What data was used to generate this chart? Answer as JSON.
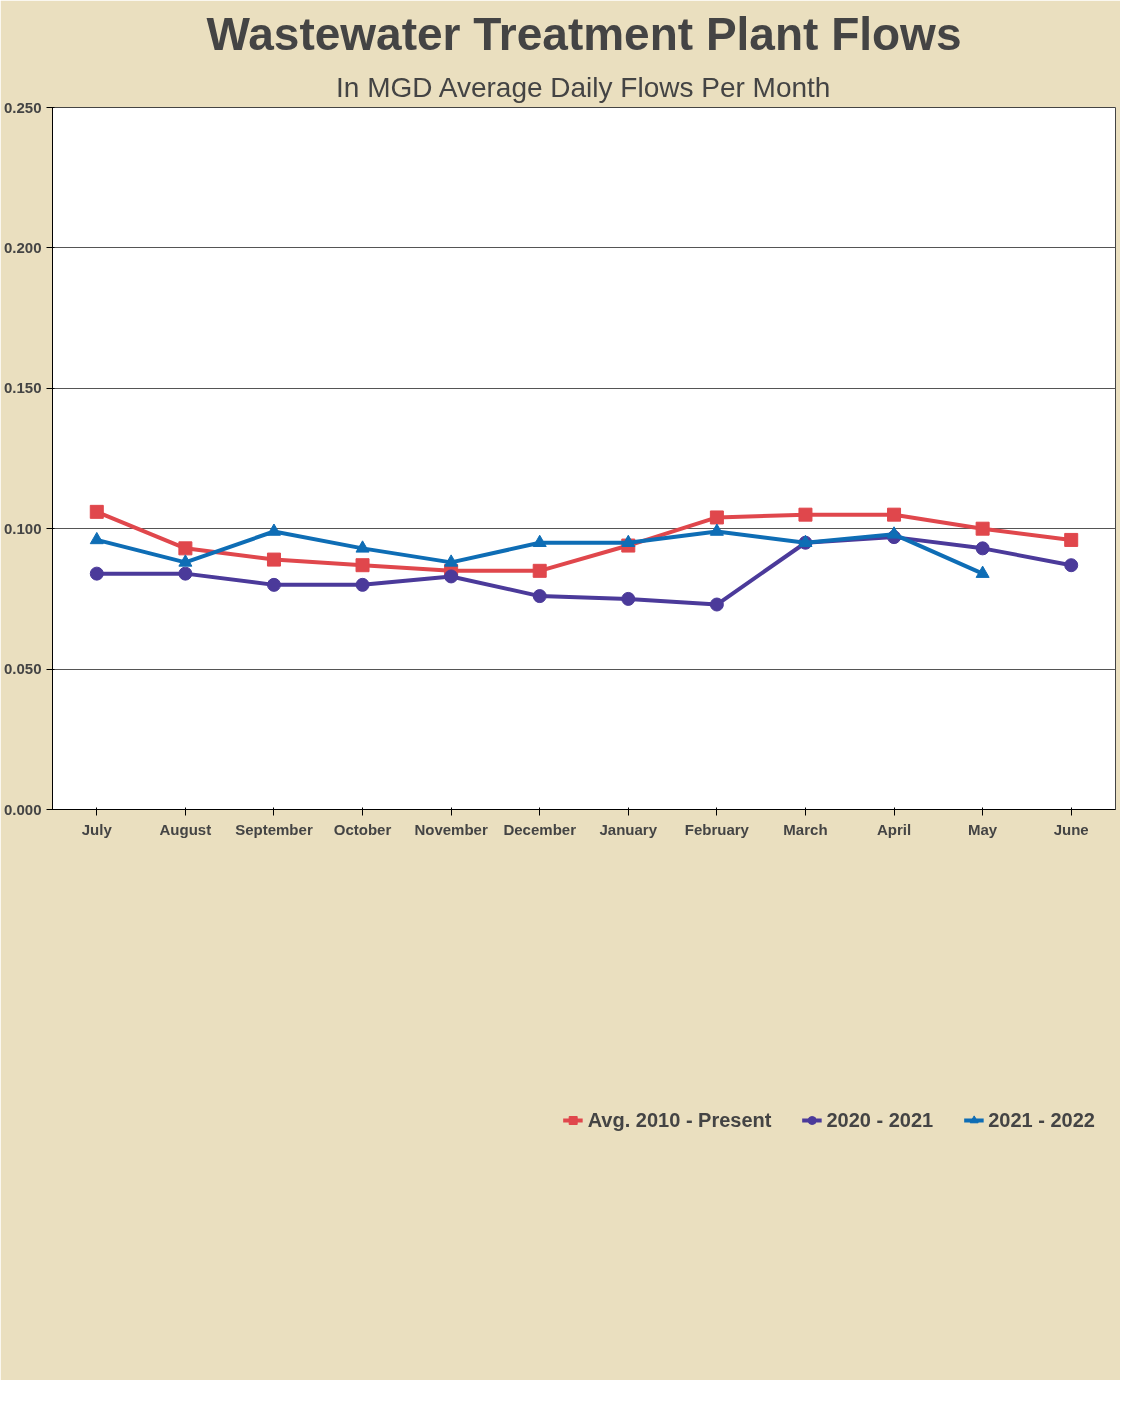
{
  "chart_data": {
    "type": "line",
    "title": "Wastewater Treatment Plant Flows",
    "subtitle": "In MGD Average Daily Flows Per Month",
    "categories": [
      "July",
      "August",
      "September",
      "October",
      "November",
      "December",
      "January",
      "February",
      "March",
      "April",
      "May",
      "June"
    ],
    "ylim": [
      0,
      0.25
    ],
    "yticks": [
      {
        "value": 0,
        "label": "0.000"
      },
      {
        "value": 0.05,
        "label": "0.050"
      },
      {
        "value": 0.1,
        "label": "0.100"
      },
      {
        "value": 0.15,
        "label": "0.150"
      },
      {
        "value": 0.2,
        "label": "0.200"
      },
      {
        "value": 0.25,
        "label": "0.250"
      }
    ],
    "grid": "y",
    "legend": "bottom",
    "series": [
      {
        "name": "Avg. 2010 - Present",
        "color": "#e0474c",
        "marker": "square",
        "values": [
          0.106,
          0.093,
          0.089,
          0.087,
          0.085,
          0.085,
          0.094,
          0.104,
          0.105,
          0.105,
          0.1,
          0.096
        ]
      },
      {
        "name": "2020 - 2021",
        "color": "#4b3a9a",
        "marker": "circle",
        "values": [
          0.084,
          0.084,
          0.08,
          0.08,
          0.083,
          0.076,
          0.075,
          0.073,
          0.095,
          0.097,
          0.093,
          0.087
        ]
      },
      {
        "name": "2021 - 2022",
        "color": "#0e6db5",
        "marker": "triangle",
        "values": [
          0.096,
          0.088,
          0.099,
          0.093,
          0.088,
          0.095,
          0.095,
          0.099,
          0.095,
          0.098,
          0.084,
          null
        ]
      }
    ]
  }
}
